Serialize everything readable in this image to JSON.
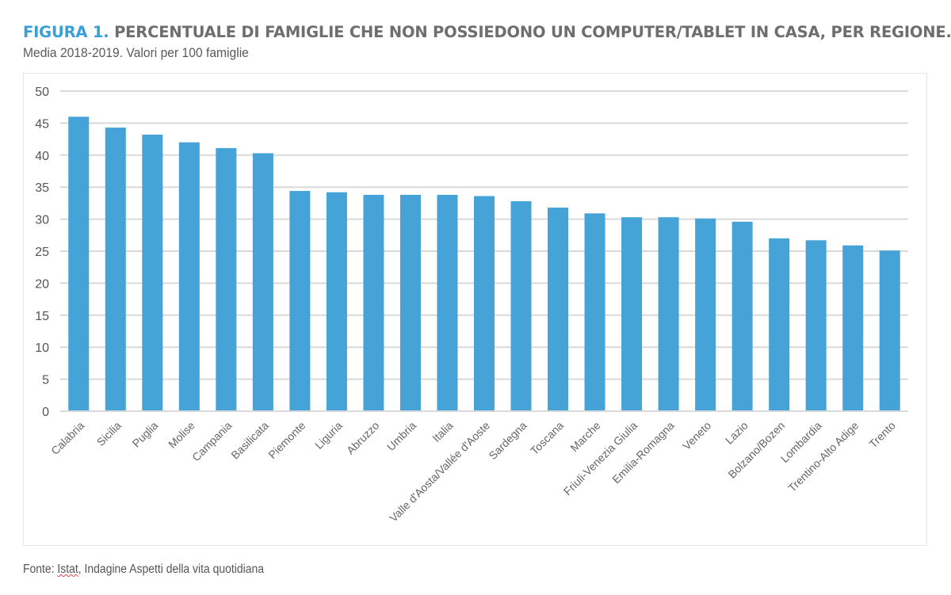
{
  "header": {
    "figure_label": "FIGURA 1.",
    "title": "PERCENTUALE DI FAMIGLIE CHE NON POSSIEDONO UN COMPUTER/TABLET IN CASA, PER REGIONE.",
    "subtitle": "Media 2018-2019. Valori per 100 famiglie"
  },
  "footer": {
    "source_prefix": "Fonte: ",
    "source_org": "Istat",
    "source_rest": ", Indagine Aspetti della vita quotidiana"
  },
  "colors": {
    "bar": "#45a3d8",
    "accent": "#3a9fd6",
    "gridline": "#d9d9d9",
    "text": "#6e6e6e"
  },
  "chart_data": {
    "type": "bar",
    "title": "PERCENTUALE DI FAMIGLIE CHE NON POSSIEDONO UN COMPUTER/TABLET IN CASA, PER REGIONE.",
    "subtitle": "Media 2018-2019. Valori per 100 famiglie",
    "xlabel": "",
    "ylabel": "",
    "ylim": [
      0,
      50
    ],
    "yticks": [
      0,
      5,
      10,
      15,
      20,
      25,
      30,
      35,
      40,
      45,
      50
    ],
    "grid": true,
    "legend": "none",
    "categories": [
      "Calabria",
      "Sicilia",
      "Puglia",
      "Molise",
      "Campania",
      "Basilicata",
      "Piemonte",
      "Liguria",
      "Abruzzo",
      "Umbria",
      "Italia",
      "Valle d'Aosta/Vallée d'Aoste",
      "Sardegna",
      "Toscana",
      "Marche",
      "Friuli-Venezia Giulia",
      "Emilia-Romagna",
      "Veneto",
      "Lazio",
      "Bolzano/Bozen",
      "Lombardia",
      "Trentino-Alto Adige",
      "Trento"
    ],
    "values": [
      46.0,
      44.3,
      43.2,
      42.0,
      41.1,
      40.3,
      34.4,
      34.2,
      33.8,
      33.8,
      33.8,
      33.6,
      32.8,
      31.8,
      30.9,
      30.3,
      30.3,
      30.1,
      29.6,
      27.0,
      26.7,
      25.9,
      25.1
    ],
    "source": "Fonte: Istat, Indagine Aspetti della vita quotidiana"
  }
}
